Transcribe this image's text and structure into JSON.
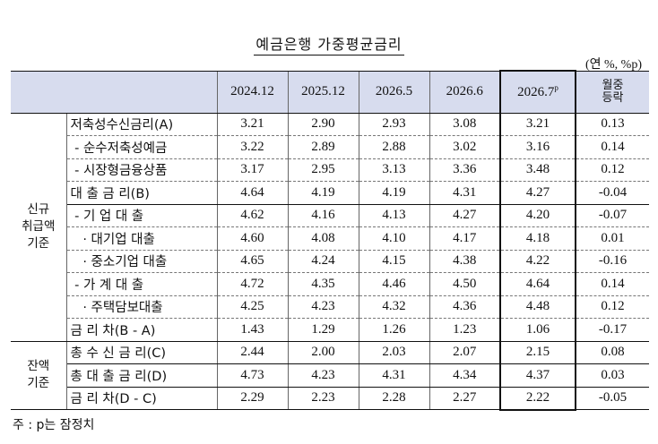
{
  "title": "예금은행 가중평균금리",
  "unit": "(연 %, %p)",
  "columns": [
    "2024.12",
    "2025.12",
    "2026.5",
    "2026.6",
    "2026.7",
    "월중 등락"
  ],
  "provisional_mark": "p",
  "mom_line1": "월중",
  "mom_line2": "등락",
  "groups": {
    "new": [
      "신규",
      "취급액",
      "기준"
    ],
    "bal": [
      "잔액",
      "기준"
    ]
  },
  "rows": [
    {
      "label": "저축성수신금리(A)",
      "v": [
        "3.21",
        "2.90",
        "2.93",
        "3.08",
        "3.21",
        "0.13"
      ]
    },
    {
      "label": " - 순수저축성예금",
      "v": [
        "3.22",
        "2.89",
        "2.88",
        "3.02",
        "3.16",
        "0.14"
      ]
    },
    {
      "label": " - 시장형금융상품",
      "v": [
        "3.17",
        "2.95",
        "3.13",
        "3.36",
        "3.48",
        "0.12"
      ]
    },
    {
      "label": "대 출 금 리(B)",
      "v": [
        "4.64",
        "4.19",
        "4.19",
        "4.31",
        "4.27",
        "-0.04"
      ]
    },
    {
      "label": " - 기 업 대 출",
      "v": [
        "4.62",
        "4.16",
        "4.13",
        "4.27",
        "4.20",
        "-0.07"
      ]
    },
    {
      "label": "   · 대기업 대출",
      "v": [
        "4.60",
        "4.08",
        "4.10",
        "4.17",
        "4.18",
        "0.01"
      ]
    },
    {
      "label": "   · 중소기업 대출",
      "v": [
        "4.65",
        "4.24",
        "4.15",
        "4.38",
        "4.22",
        "-0.16"
      ]
    },
    {
      "label": " - 가 계 대 출",
      "v": [
        "4.72",
        "4.35",
        "4.46",
        "4.50",
        "4.64",
        "0.14"
      ]
    },
    {
      "label": "   · 주택담보대출",
      "v": [
        "4.25",
        "4.23",
        "4.32",
        "4.36",
        "4.48",
        "0.12"
      ]
    },
    {
      "label": "금 리 차(B - A)",
      "v": [
        "1.43",
        "1.29",
        "1.26",
        "1.23",
        "1.06",
        "-0.17"
      ]
    },
    {
      "label": "총 수 신 금 리(C)",
      "v": [
        "2.44",
        "2.00",
        "2.03",
        "2.07",
        "2.15",
        "0.08"
      ]
    },
    {
      "label": "총 대 출 금 리(D)",
      "v": [
        "4.73",
        "4.23",
        "4.31",
        "4.34",
        "4.37",
        "0.03"
      ]
    },
    {
      "label": "금 리 차(D - C)",
      "v": [
        "2.29",
        "2.23",
        "2.28",
        "2.27",
        "2.22",
        "-0.05"
      ]
    }
  ],
  "note": "주 : p는 잠정치"
}
